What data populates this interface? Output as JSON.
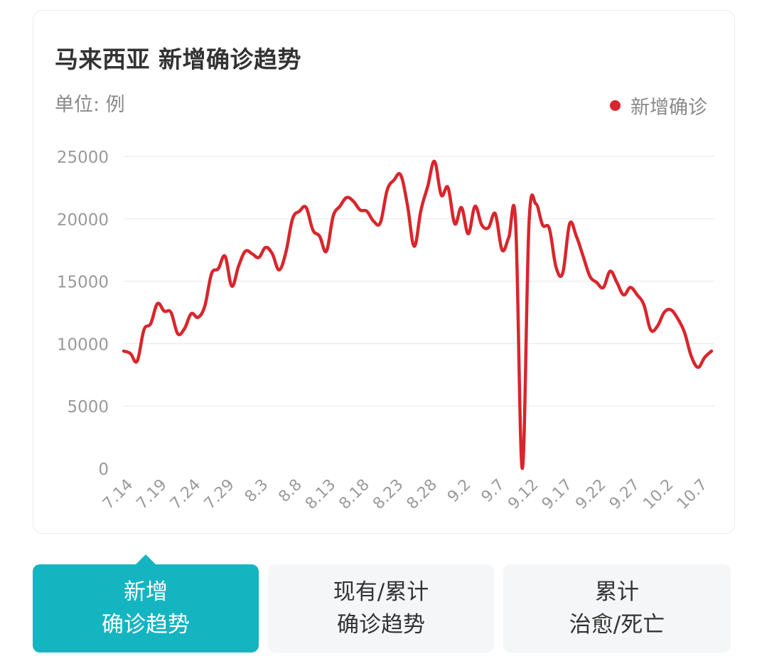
{
  "colors": {
    "series": "#d8262c",
    "accent": "#14b5c1",
    "grid": "#eeeeee",
    "axis_text": "#9a9a9a",
    "title": "#333333"
  },
  "chart_data": {
    "type": "line",
    "title": "马来西亚 新增确诊趋势",
    "unit_label": "单位: 例",
    "legend_position": "top-right",
    "grid": true,
    "ylim": [
      0,
      25000
    ],
    "y_ticks": [
      0,
      5000,
      10000,
      15000,
      20000,
      25000
    ],
    "x_tick_labels": [
      "7.14",
      "7.19",
      "7.24",
      "7.29",
      "8.3",
      "8.8",
      "8.13",
      "8.18",
      "8.23",
      "8.28",
      "9.2",
      "9.7",
      "9.12",
      "9.17",
      "9.22",
      "9.27",
      "10.2",
      "10.7"
    ],
    "x_start_label": "7.14",
    "series": [
      {
        "name": "新增确诊",
        "values": [
          9400,
          9200,
          8600,
          11100,
          11600,
          13200,
          12600,
          12500,
          10800,
          11200,
          12400,
          12100,
          13000,
          15600,
          16000,
          17000,
          14600,
          16200,
          17400,
          17200,
          16900,
          17700,
          17200,
          15900,
          17300,
          20000,
          20600,
          20900,
          19100,
          18600,
          17400,
          20200,
          21000,
          21700,
          21400,
          20700,
          20600,
          19800,
          19700,
          22300,
          23100,
          23500,
          21100,
          17800,
          20700,
          22600,
          24600,
          21900,
          22500,
          19600,
          20900,
          18800,
          21000,
          19500,
          19300,
          20400,
          17500,
          18500,
          19800,
          0,
          19700,
          21200,
          19500,
          19200,
          16100,
          15700,
          19600,
          18600,
          17000,
          15400,
          14900,
          14500,
          15800,
          14900,
          13900,
          14500,
          13900,
          13100,
          11100,
          11400,
          12500,
          12700,
          12000,
          10900,
          9000,
          8100,
          8900,
          9400
        ]
      }
    ]
  },
  "tabs": [
    {
      "line1": "新增",
      "line2": "确诊趋势"
    },
    {
      "line1": "现有/累计",
      "line2": "确诊趋势"
    },
    {
      "line1": "累计",
      "line2": "治愈/死亡"
    }
  ]
}
